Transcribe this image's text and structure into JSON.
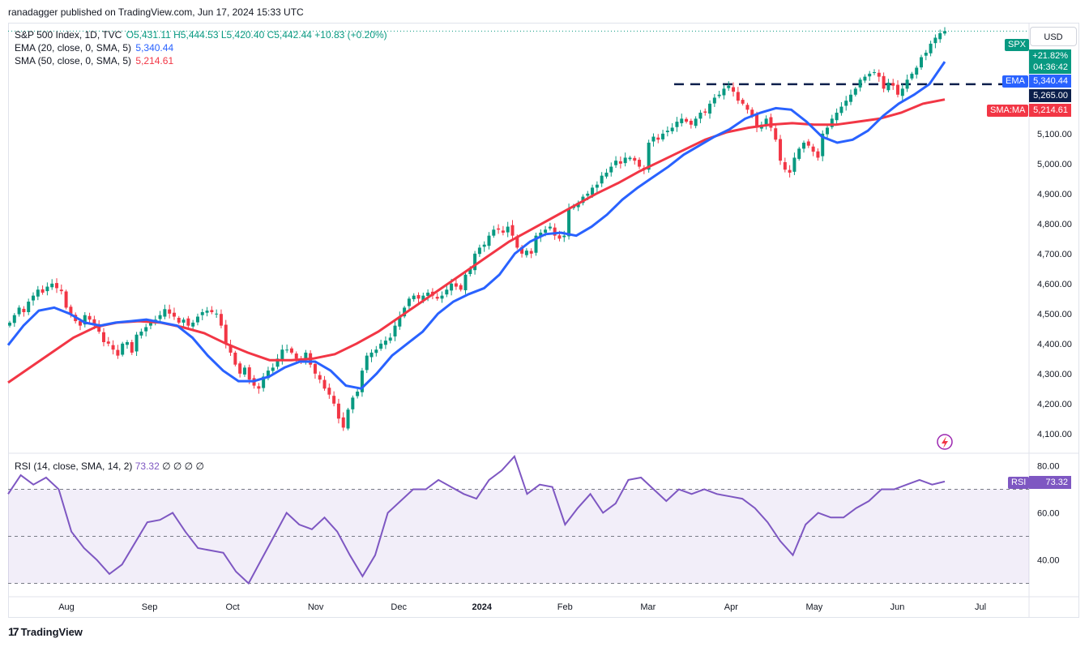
{
  "header": {
    "published": "ranadagger published on TradingView.com, Jun 17, 2024 15:33 UTC"
  },
  "legend": {
    "symbol": "S&P 500 Index, 1D, TVC",
    "ohlc": "O5,431.11 H5,444.53 L5,420.40 C5,442.44 +10.83 (+0.20%)",
    "ema_label": "EMA (20, close, 0, SMA, 5)",
    "ema_value": "5,340.44",
    "sma_label": "SMA (50, close, 0, SMA, 5)",
    "sma_value": "5,214.61",
    "rsi_label": "RSI (14, close, SMA, 14, 2)",
    "rsi_value": "73.32",
    "rsi_extra": "∅ ∅ ∅ ∅"
  },
  "currency_button": "USD",
  "tags": {
    "spx_name": "SPX",
    "spx_change": "+21.82%",
    "spx_countdown": "04:36:42",
    "ema_name": "EMA",
    "ema_value": "5,340.44",
    "level_value": "5,265.00",
    "sma_name": "SMA:MA",
    "sma_value": "5,214.61",
    "rsi_name": "RSI",
    "rsi_value": "73.32"
  },
  "brand": "TradingView",
  "colors": {
    "up": "#089981",
    "down": "#f23645",
    "ema": "#2962ff",
    "sma": "#f23645",
    "rsi": "#7e57c2",
    "level": "#1e3a8a"
  },
  "chart_data": {
    "type": "candlestick",
    "title": "S&P 500 Index, 1D, TVC",
    "x_ticks": [
      "Aug",
      "Sep",
      "Oct",
      "Nov",
      "Dec",
      "2024",
      "Feb",
      "Mar",
      "Apr",
      "May",
      "Jun",
      "Jul"
    ],
    "y_ticks": [
      4100,
      4200,
      4300,
      4400,
      4500,
      4600,
      4700,
      4800,
      4900,
      5000,
      5100
    ],
    "y_tick_labels": [
      "4,100.00",
      "4,200.00",
      "4,300.00",
      "4,400.00",
      "4,500.00",
      "4,600.00",
      "4,700.00",
      "4,800.00",
      "4,900.00",
      "5,000.00",
      "5,100.00"
    ],
    "ylim": [
      4040,
      5470
    ],
    "horizontal_level": 5265,
    "close_series": [
      4470,
      4495,
      4520,
      4505,
      4540,
      4560,
      4580,
      4570,
      4590,
      4600,
      4585,
      4575,
      4520,
      4500,
      4475,
      4460,
      4495,
      4480,
      4460,
      4440,
      4405,
      4400,
      4380,
      4360,
      4400,
      4405,
      4370,
      4430,
      4440,
      4455,
      4470,
      4480,
      4495,
      4515,
      4500,
      4490,
      4470,
      4480,
      4460,
      4470,
      4490,
      4505,
      4510,
      4505,
      4500,
      4460,
      4400,
      4370,
      4330,
      4300,
      4320,
      4280,
      4260,
      4250,
      4290,
      4310,
      4320,
      4350,
      4380,
      4380,
      4370,
      4350,
      4340,
      4370,
      4330,
      4300,
      4280,
      4250,
      4230,
      4200,
      4150,
      4120,
      4180,
      4220,
      4240,
      4310,
      4360,
      4370,
      4380,
      4400,
      4410,
      4420,
      4460,
      4490,
      4520,
      4550,
      4560,
      4550,
      4560,
      4570,
      4560,
      4550,
      4560,
      4580,
      4600,
      4590,
      4580,
      4630,
      4650,
      4700,
      4720,
      4730,
      4760,
      4780,
      4780,
      4770,
      4790,
      4760,
      4720,
      4700,
      4710,
      4700,
      4760,
      4770,
      4780,
      4790,
      4760,
      4750,
      4760,
      4850,
      4860,
      4870,
      4890,
      4900,
      4920,
      4930,
      4960,
      4970,
      4990,
      5010,
      5000,
      5020,
      5020,
      5010,
      4990,
      4980,
      5070,
      5090,
      5080,
      5100,
      5110,
      5120,
      5140,
      5150,
      5140,
      5130,
      5150,
      5170,
      5170,
      5200,
      5220,
      5230,
      5250,
      5260,
      5240,
      5210,
      5200,
      5180,
      5160,
      5120,
      5130,
      5150,
      5120,
      5080,
      5010,
      4980,
      4970,
      5020,
      5050,
      5070,
      5060,
      5040,
      5020,
      5100,
      5120,
      5150,
      5170,
      5190,
      5210,
      5230,
      5250,
      5280,
      5290,
      5300,
      5305,
      5290,
      5250,
      5270,
      5260,
      5230,
      5250,
      5280,
      5300,
      5320,
      5355,
      5370,
      5400,
      5420,
      5435,
      5442
    ],
    "ema_20": [
      4395,
      4460,
      4510,
      4520,
      4500,
      4470,
      4460,
      4470,
      4475,
      4480,
      4470,
      4460,
      4420,
      4360,
      4310,
      4275,
      4275,
      4290,
      4320,
      4340,
      4340,
      4310,
      4260,
      4250,
      4300,
      4360,
      4400,
      4440,
      4500,
      4540,
      4565,
      4585,
      4630,
      4700,
      4740,
      4765,
      4770,
      4760,
      4790,
      4830,
      4880,
      4920,
      4955,
      4990,
      5030,
      5060,
      5090,
      5115,
      5150,
      5170,
      5185,
      5180,
      5140,
      5090,
      5070,
      5080,
      5110,
      5160,
      5200,
      5230,
      5265,
      5340
    ],
    "sma_50": [
      4270,
      4320,
      4370,
      4420,
      4455,
      4470,
      4475,
      4470,
      4455,
      4435,
      4400,
      4370,
      4345,
      4345,
      4350,
      4365,
      4400,
      4440,
      4490,
      4540,
      4590,
      4640,
      4690,
      4740,
      4780,
      4820,
      4860,
      4900,
      4935,
      4975,
      5010,
      5045,
      5080,
      5105,
      5120,
      5130,
      5135,
      5130,
      5130,
      5140,
      5150,
      5170,
      5200,
      5214
    ],
    "rsi_14": [
      68,
      76,
      72,
      75,
      70,
      52,
      45,
      40,
      34,
      38,
      47,
      56,
      57,
      60,
      52,
      45,
      44,
      43,
      35,
      30,
      40,
      50,
      60,
      55,
      53,
      58,
      52,
      42,
      33,
      42,
      60,
      65,
      70,
      70,
      74,
      71,
      68,
      66,
      74,
      78,
      84,
      68,
      72,
      71,
      55,
      62,
      68,
      60,
      64,
      74,
      75,
      70,
      65,
      70,
      68,
      70,
      68,
      67,
      66,
      62,
      56,
      48,
      42,
      55,
      60,
      58,
      58,
      62,
      65,
      70,
      70,
      72,
      74,
      72,
      73.32
    ],
    "rsi_levels": [
      30,
      50,
      70
    ],
    "rsi_ylim": [
      25,
      85
    ],
    "rsi_ticks": [
      "40.00",
      "60.00",
      "80.00"
    ]
  }
}
